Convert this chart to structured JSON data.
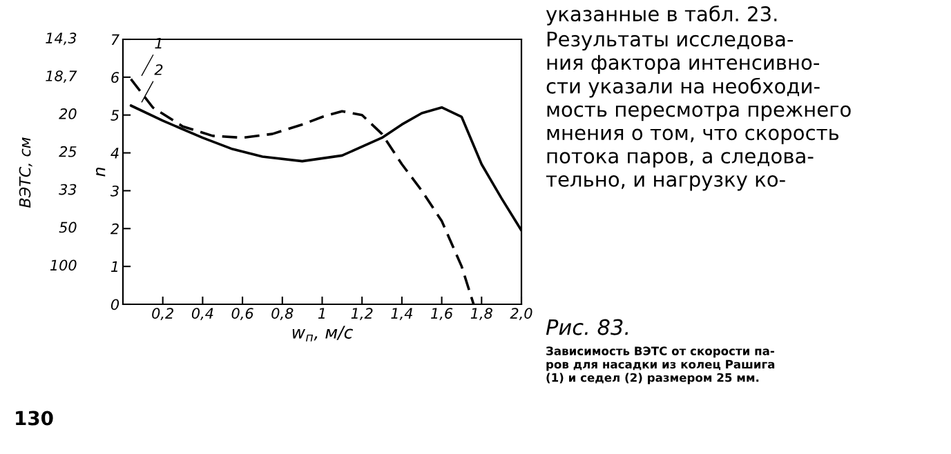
{
  "chart_data": {
    "type": "line",
    "xlabel": "w$_{п}$, м/с",
    "ylabel": "n",
    "xlim": [
      0,
      2.0
    ],
    "xticks": [
      {
        "value": 0.2,
        "label": "0,2"
      },
      {
        "value": 0.4,
        "label": "0,4"
      },
      {
        "value": 0.6,
        "label": "0,6"
      },
      {
        "value": 0.8,
        "label": "0,8"
      },
      {
        "value": 1.0,
        "label": "1"
      },
      {
        "value": 1.2,
        "label": "1,2"
      },
      {
        "value": 1.4,
        "label": "1,4"
      },
      {
        "value": 1.6,
        "label": "1,6"
      },
      {
        "value": 1.8,
        "label": "1,8"
      },
      {
        "value": 2.0,
        "label": "2,0"
      }
    ],
    "ylim": [
      0,
      7
    ],
    "yticks": [
      0,
      1,
      2,
      3,
      4,
      5,
      6,
      7
    ],
    "grid": false,
    "legend": false,
    "series": [
      {
        "name": "1",
        "color": "#000000",
        "line_style": "dashed",
        "x": [
          0.04,
          0.15,
          0.3,
          0.45,
          0.6,
          0.75,
          0.9,
          1.0,
          1.1,
          1.2,
          1.3,
          1.4,
          1.5,
          1.6,
          1.7,
          1.76
        ],
        "values": [
          5.95,
          5.2,
          4.7,
          4.45,
          4.4,
          4.5,
          4.75,
          4.95,
          5.1,
          5.0,
          4.5,
          3.7,
          3.0,
          2.2,
          1.0,
          0.0
        ]
      },
      {
        "name": "2",
        "color": "#000000",
        "line_style": "solid",
        "x": [
          0.04,
          0.2,
          0.4,
          0.55,
          0.7,
          0.9,
          1.1,
          1.3,
          1.4,
          1.5,
          1.6,
          1.7,
          1.8,
          1.9,
          2.0
        ],
        "values": [
          5.25,
          4.85,
          4.4,
          4.1,
          3.9,
          3.78,
          3.93,
          4.4,
          4.75,
          5.05,
          5.2,
          4.95,
          3.7,
          2.8,
          1.95
        ]
      }
    ],
    "annotations": [
      "указанные в табл. 23.",
      "Результаты исследова-\nния фактора интенсивно-\nсти указали на необходи-\nмость пересмотра прежнего\nмнения о том, что скорость\nпотока паров, а следова-\nтельно, и нагрузку ко-",
      "Рис. 83.",
      "Зависимость ВЭТС от скорости па-\nров для насадки из колец Рашига\n(1) и седел (2) размером 25 мм.",
      "130",
      "ВЭТС, см",
      "14,3",
      "18,7",
      "20",
      "25",
      "33",
      "50",
      "100"
    ]
  }
}
